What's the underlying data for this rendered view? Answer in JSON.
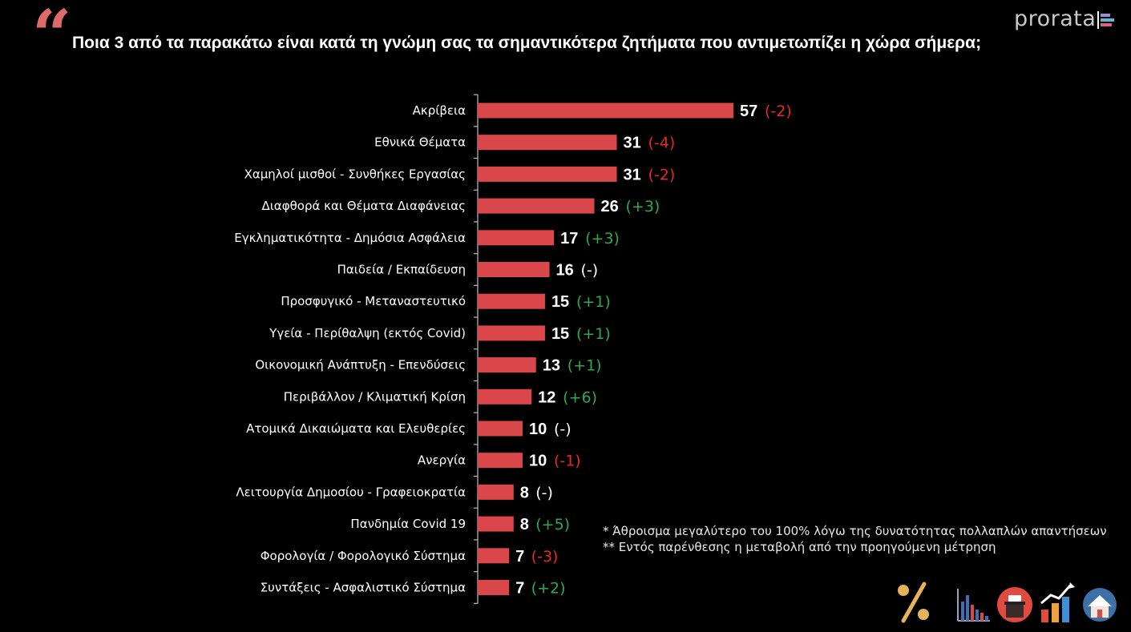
{
  "header": {
    "quote_glyph": "“",
    "title": "Ποια 3 από τα παρακάτω είναι κατά τη γνώμη σας τα σημαντικότερα ζητήματα που αντιμετωπίζει η χώρα σήμερα;",
    "brand": "prorata"
  },
  "colors": {
    "bar": "#d9474b",
    "negative": "#e8262c",
    "positive": "#2fa84f",
    "neutral": "#ffffff",
    "quote": "#e06a6a"
  },
  "chart_data": {
    "type": "bar",
    "orientation": "horizontal",
    "title": "Ποια 3 από τα παρακάτω είναι κατά τη γνώμη σας τα σημαντικότερα ζητήματα που αντιμετωπίζει η χώρα σήμερα;",
    "xlabel": "",
    "ylabel": "",
    "xlim": [
      0,
      60
    ],
    "categories": [
      "Ακρίβεια",
      "Εθνικά Θέματα",
      "Χαμηλοί μισθοί - Συνθήκες Εργασίας",
      "Διαφθορά και Θέματα Διαφάνειας",
      "Εγκληματικότητα - Δημόσια Ασφάλεια",
      "Παιδεία / Εκπαίδευση",
      "Προσφυγικό - Μεταναστευτικό",
      "Υγεία - Περίθαλψη (εκτός Covid)",
      "Οικονομική Ανάπτυξη - Επενδύσεις",
      "Περιβάλλον / Κλιματική Κρίση",
      "Ατομικά Δικαιώματα και Ελευθερίες",
      "Ανεργία",
      "Λειτουργία Δημοσίου - Γραφειοκρατία",
      "Πανδημία Covid 19",
      "Φορολογία / Φορολογικό Σύστημα",
      "Συντάξεις - Ασφαλιστικό Σύστημα"
    ],
    "values": [
      57,
      31,
      31,
      26,
      17,
      16,
      15,
      15,
      13,
      12,
      10,
      10,
      8,
      8,
      7,
      7
    ],
    "changes": [
      "(-2)",
      "(-4)",
      "(-2)",
      "(+3)",
      "(+3)",
      "(-)",
      "(+1)",
      "(+1)",
      "(+1)",
      "(+6)",
      "(-)",
      "(-1)",
      "(-)",
      "(+5)",
      "(-3)",
      "(+2)"
    ],
    "change_types": [
      "negative",
      "negative",
      "negative",
      "positive",
      "positive",
      "neutral",
      "positive",
      "positive",
      "positive",
      "positive",
      "neutral",
      "negative",
      "neutral",
      "positive",
      "negative",
      "positive"
    ]
  },
  "footnotes": [
    "* Άθροισμα μεγαλύτερο του 100% λόγω της δυνατότητας πολλαπλών απαντήσεων",
    "** Εντός παρένθεσης η μεταβολή από την προηγούμενη μέτρηση"
  ],
  "icons": [
    "percent-icon",
    "bar-chart-icon",
    "ballot-box-icon",
    "growth-chart-icon",
    "house-icon"
  ]
}
